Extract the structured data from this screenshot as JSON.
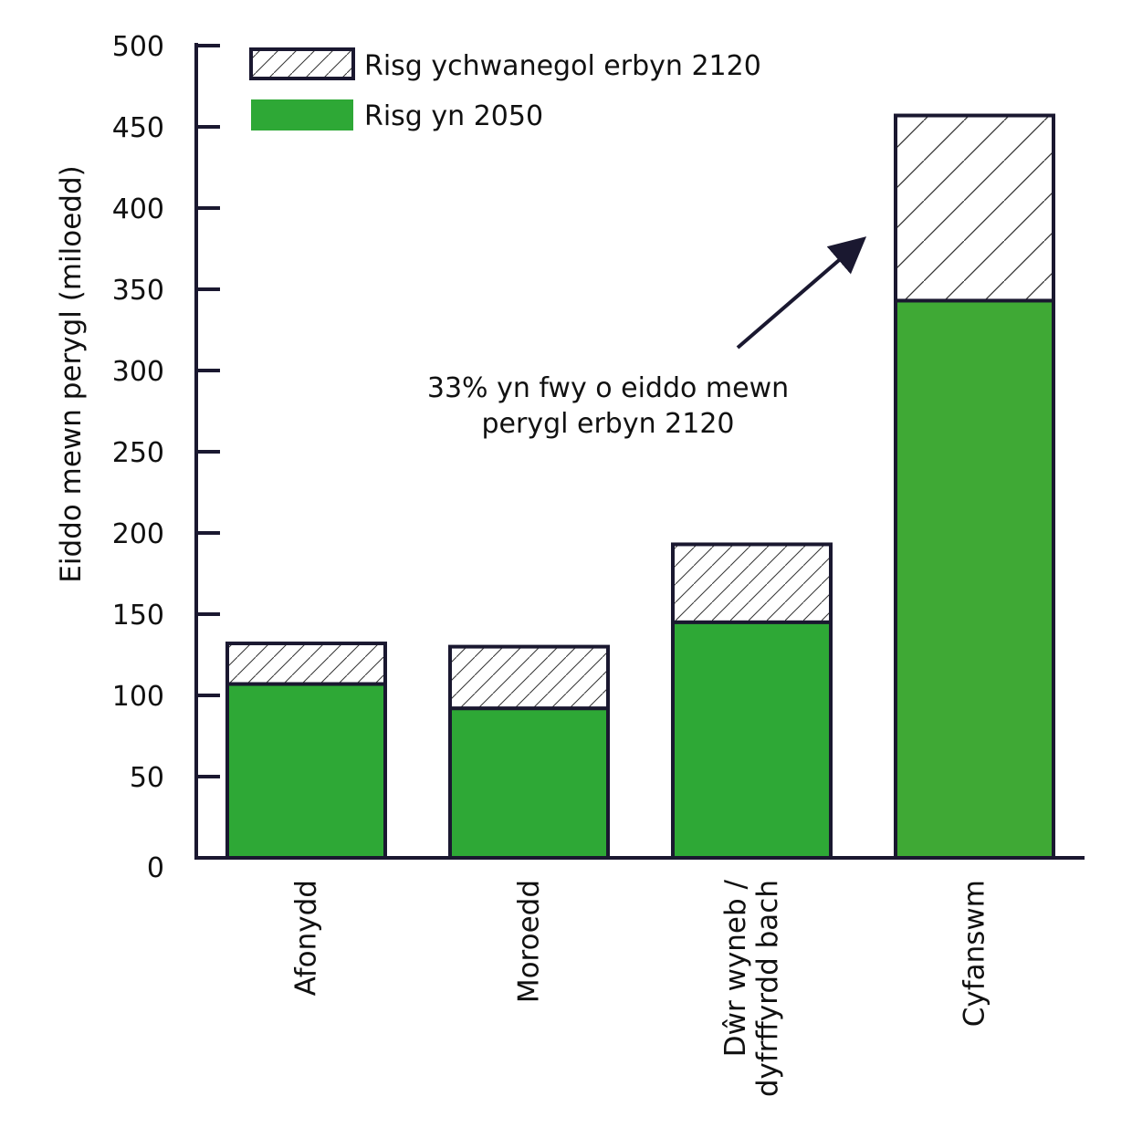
{
  "chart_data": {
    "type": "bar",
    "stacked": true,
    "title": "",
    "xlabel": "",
    "ylabel": "Eiddo mewn perygl (miloedd)",
    "ylim": [
      0,
      500
    ],
    "yticks": [
      0,
      50,
      100,
      150,
      200,
      250,
      300,
      350,
      400,
      450,
      500
    ],
    "categories": [
      [
        "Afonydd"
      ],
      [
        "Moroedd"
      ],
      [
        "Dŵr wyneb /",
        "dyfrffyrdd bach"
      ],
      [
        "Cyfanswm"
      ]
    ],
    "series": [
      {
        "name": "Risg yn 2050",
        "values": [
          107,
          92,
          145,
          343
        ],
        "color": "#2ea836",
        "pattern": "solid"
      },
      {
        "name": "Risg ychwanegol erbyn 2120",
        "values": [
          25,
          38,
          48,
          114
        ],
        "color": "#ffffff",
        "pattern": "hatch"
      }
    ],
    "legend_position": "top-left",
    "annotation": {
      "lines": [
        "33% yn fwy o eiddo mewn",
        "perygl erbyn 2120"
      ],
      "arrow_target": "Cyfanswm"
    },
    "total_bar_color": "#3fa935",
    "grid": false
  }
}
